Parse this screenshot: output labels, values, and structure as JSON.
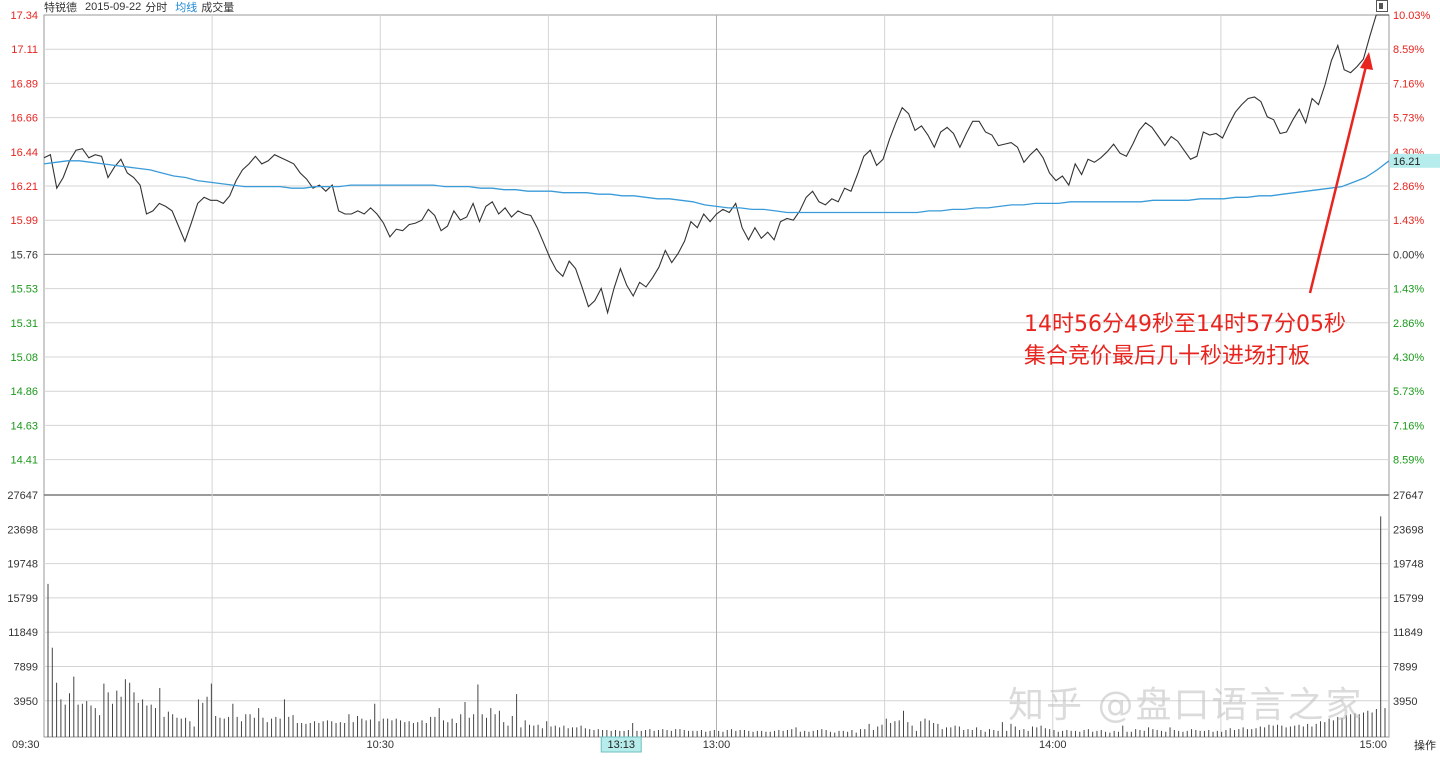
{
  "header": {
    "stock_name": "特锐德",
    "date": "2015-09-22",
    "chart_kind": "分时",
    "avg_label": "均线",
    "volume_label": "成交量"
  },
  "annotation": {
    "line1": "14时56分49秒至14时57分05秒",
    "line2": "集合竞价最后几十秒进场打板",
    "color": "#e8241f"
  },
  "watermark": "知乎 @盘口语言之家",
  "controls": {
    "operate_label": "操作"
  },
  "colors": {
    "price_line": "#333333",
    "avg_line": "#3a9bd9",
    "up": "#e8241f",
    "down": "#1a9a1a",
    "grid": "#d4d4d4",
    "highlight_bg": "#b7ecec"
  },
  "chart_data": {
    "type": "line",
    "prev_close": 15.76,
    "price_ticks": [
      "17.34",
      "17.11",
      "16.89",
      "16.66",
      "16.44",
      "16.21",
      "15.99",
      "15.76",
      "15.53",
      "15.31",
      "15.08",
      "14.86",
      "14.63",
      "14.41"
    ],
    "pct_ticks": [
      "10.03%",
      "8.59%",
      "7.16%",
      "5.73%",
      "4.30%",
      "2.86%",
      "1.43%",
      "0.00%",
      "1.43%",
      "2.86%",
      "4.30%",
      "5.73%",
      "7.16%",
      "8.59%"
    ],
    "volume_ticks": [
      "27647",
      "23698",
      "19748",
      "15799",
      "11849",
      "7899",
      "3950"
    ],
    "time_ticks": [
      "09:30",
      "10:30",
      "13:00",
      "14:00",
      "15:00"
    ],
    "highlight_time": "13:13",
    "avg_last_label": "16.21",
    "ylim": [
      14.18,
      17.34
    ],
    "vol_max": 27647,
    "series": [
      {
        "values": [
          16.4,
          16.42,
          16.2,
          16.27,
          16.38,
          16.45,
          16.46,
          16.4,
          16.42,
          16.41,
          16.27,
          16.34,
          16.39,
          16.3,
          16.27,
          16.22,
          16.03,
          16.05,
          16.1,
          16.08,
          16.05,
          15.95,
          15.85,
          15.97,
          16.1,
          16.14,
          16.12,
          16.12,
          16.1,
          16.15,
          16.25,
          16.32,
          16.36,
          16.41,
          16.36,
          16.38,
          16.42,
          16.4,
          16.38,
          16.36,
          16.3,
          16.26,
          16.2,
          16.22,
          16.18,
          16.22,
          16.05,
          16.03,
          16.03,
          16.05,
          16.03,
          16.07,
          16.03,
          15.97,
          15.88,
          15.93,
          15.92,
          15.96,
          15.97,
          15.99,
          16.06,
          16.02,
          15.92,
          15.95,
          16.05,
          15.99,
          16.01,
          16.1,
          15.98,
          16.08,
          16.11,
          16.03,
          16.07,
          16.01,
          16.05,
          16.03,
          16.02,
          15.94,
          15.84,
          15.74,
          15.66,
          15.62,
          15.72,
          15.67,
          15.55,
          15.42,
          15.46,
          15.54,
          15.38,
          15.54,
          15.67,
          15.56,
          15.49,
          15.58,
          15.55,
          15.61,
          15.68,
          15.79,
          15.71,
          15.77,
          15.85,
          15.98,
          15.94,
          16.03,
          15.98,
          16.03,
          16.06,
          16.04,
          16.1,
          15.94,
          15.86,
          15.94,
          15.87,
          15.91,
          15.86,
          15.98,
          16.0,
          15.99,
          16.05,
          16.14,
          16.18,
          16.11,
          16.09,
          16.13,
          16.11,
          16.2,
          16.18,
          16.29,
          16.41,
          16.45,
          16.35,
          16.39,
          16.52,
          16.63,
          16.73,
          16.69,
          16.58,
          16.61,
          16.55,
          16.47,
          16.57,
          16.6,
          16.56,
          16.47,
          16.56,
          16.64,
          16.64,
          16.57,
          16.55,
          16.48,
          16.49,
          16.5,
          16.47,
          16.37,
          16.42,
          16.46,
          16.4,
          16.3,
          16.25,
          16.28,
          16.22,
          16.36,
          16.29,
          16.39,
          16.37,
          16.4,
          16.44,
          16.49,
          16.43,
          16.41,
          16.49,
          16.58,
          16.63,
          16.6,
          16.54,
          16.48,
          16.54,
          16.51,
          16.45,
          16.39,
          16.41,
          16.57,
          16.55,
          16.56,
          16.53,
          16.62,
          16.7,
          16.75,
          16.79,
          16.8,
          16.77,
          16.67,
          16.65,
          16.56,
          16.57,
          16.65,
          16.72,
          16.63,
          16.79,
          16.75,
          16.88,
          17.04,
          17.14,
          16.98,
          16.96,
          17.0,
          17.05,
          17.2,
          17.34,
          17.34,
          17.34
        ],
        "color": "#333333"
      },
      {
        "values": [
          16.36,
          16.37,
          16.38,
          16.38,
          16.37,
          16.36,
          16.35,
          16.34,
          16.33,
          16.32,
          16.3,
          16.28,
          16.27,
          16.25,
          16.24,
          16.23,
          16.22,
          16.21,
          16.21,
          16.21,
          16.21,
          16.2,
          16.2,
          16.21,
          16.21,
          16.21,
          16.22,
          16.22,
          16.22,
          16.22,
          16.22,
          16.22,
          16.22,
          16.22,
          16.21,
          16.21,
          16.21,
          16.2,
          16.2,
          16.19,
          16.19,
          16.18,
          16.18,
          16.18,
          16.17,
          16.17,
          16.17,
          16.16,
          16.16,
          16.15,
          16.15,
          16.14,
          16.13,
          16.13,
          16.12,
          16.11,
          16.09,
          16.08,
          16.07,
          16.07,
          16.06,
          16.06,
          16.05,
          16.04,
          16.04,
          16.04,
          16.04,
          16.04,
          16.04,
          16.04,
          16.04,
          16.04,
          16.04,
          16.04,
          16.04,
          16.05,
          16.05,
          16.06,
          16.06,
          16.07,
          16.07,
          16.08,
          16.09,
          16.09,
          16.1,
          16.1,
          16.1,
          16.11,
          16.11,
          16.11,
          16.11,
          16.11,
          16.11,
          16.11,
          16.12,
          16.12,
          16.12,
          16.12,
          16.13,
          16.13,
          16.13,
          16.14,
          16.14,
          16.15,
          16.15,
          16.16,
          16.17,
          16.18,
          16.19,
          16.2,
          16.21,
          16.24,
          16.27,
          16.32,
          16.38
        ],
        "color": "#3a9bd9"
      }
    ],
    "volumes": [
      17500,
      10200,
      6200,
      4300,
      3700,
      5000,
      6900,
      3700,
      3800,
      4100,
      3600,
      3300,
      2500,
      6100,
      5100,
      3800,
      5300,
      4600,
      6600,
      6200,
      5100,
      3900,
      4300,
      3600,
      3700,
      3300,
      5600,
      2300,
      2900,
      2600,
      2200,
      2100,
      2200,
      1800,
      1200,
      4300,
      3900,
      4600,
      6100,
      2400,
      2200,
      2100,
      2300,
      3800,
      2300,
      1800,
      2600,
      2600,
      2200,
      3300,
      2200,
      1700,
      2100,
      2300,
      2100,
      4300,
      2300,
      2500,
      1600,
      1600,
      1500,
      1600,
      1800,
      1600,
      1800,
      1900,
      1800,
      1600,
      1700,
      1600,
      2600,
      1700,
      2400,
      2100,
      1900,
      2000,
      3800,
      1800,
      2100,
      2100,
      1900,
      2100,
      1900,
      1700,
      1800,
      1600,
      1700,
      1900,
      1600,
      2300,
      2300,
      3300,
      1900,
      1700,
      2100,
      1600,
      2600,
      4000,
      2200,
      2600,
      6000,
      2600,
      2200,
      3300,
      2600,
      3000,
      1700,
      1300,
      2400,
      4900,
      1100,
      1900,
      1400,
      1300,
      1400,
      1000,
      1800,
      1200,
      1300,
      1100,
      1300,
      1000,
      1100,
      1100,
      1300,
      1000,
      900,
      800,
      900,
      800,
      800,
      700,
      800,
      700,
      700,
      800,
      1600,
      700,
      700,
      800,
      900,
      700,
      800,
      900,
      800,
      700,
      900,
      900,
      800,
      700,
      700,
      700,
      800,
      600,
      700,
      800,
      700,
      600,
      800,
      900,
      700,
      800,
      800,
      700,
      600,
      700,
      700,
      600,
      600,
      700,
      800,
      700,
      800,
      900,
      1100,
      600,
      700,
      600,
      700,
      800,
      900,
      800,
      600,
      500,
      700,
      700,
      600,
      800,
      500,
      900,
      900,
      1500,
      800,
      1200,
      1400,
      2100,
      1600,
      1800,
      1900,
      3000,
      1700,
      1300,
      700,
      1800,
      2100,
      1900,
      1600,
      1500,
      900,
      1100,
      1100,
      1300,
      1200,
      800,
      900,
      800,
      1100,
      800,
      600,
      900,
      800,
      700,
      1700,
      700,
      1500,
      1200,
      800,
      900,
      700,
      1200,
      1100,
      1300,
      1000,
      900,
      800,
      600,
      700,
      800,
      700,
      700,
      600,
      800,
      900,
      600,
      700,
      800,
      600,
      500,
      700,
      600,
      1300,
      600,
      600,
      900,
      800,
      700,
      1100,
      900,
      800,
      700,
      600,
      1100,
      800,
      700,
      600,
      700,
      900,
      800,
      700,
      700,
      800,
      600,
      700,
      600,
      800,
      1000,
      800,
      900,
      1100,
      900,
      900,
      1000,
      1200,
      1100,
      1400,
      1300,
      1400,
      1300,
      1100,
      1200,
      1300,
      1400,
      1200,
      1500,
      1200,
      1500,
      1800,
      1700,
      2100,
      1900,
      2300,
      2200,
      2500,
      2600,
      2700,
      2600,
      2800,
      3000,
      2800,
      3200,
      25200,
      3300
    ]
  }
}
